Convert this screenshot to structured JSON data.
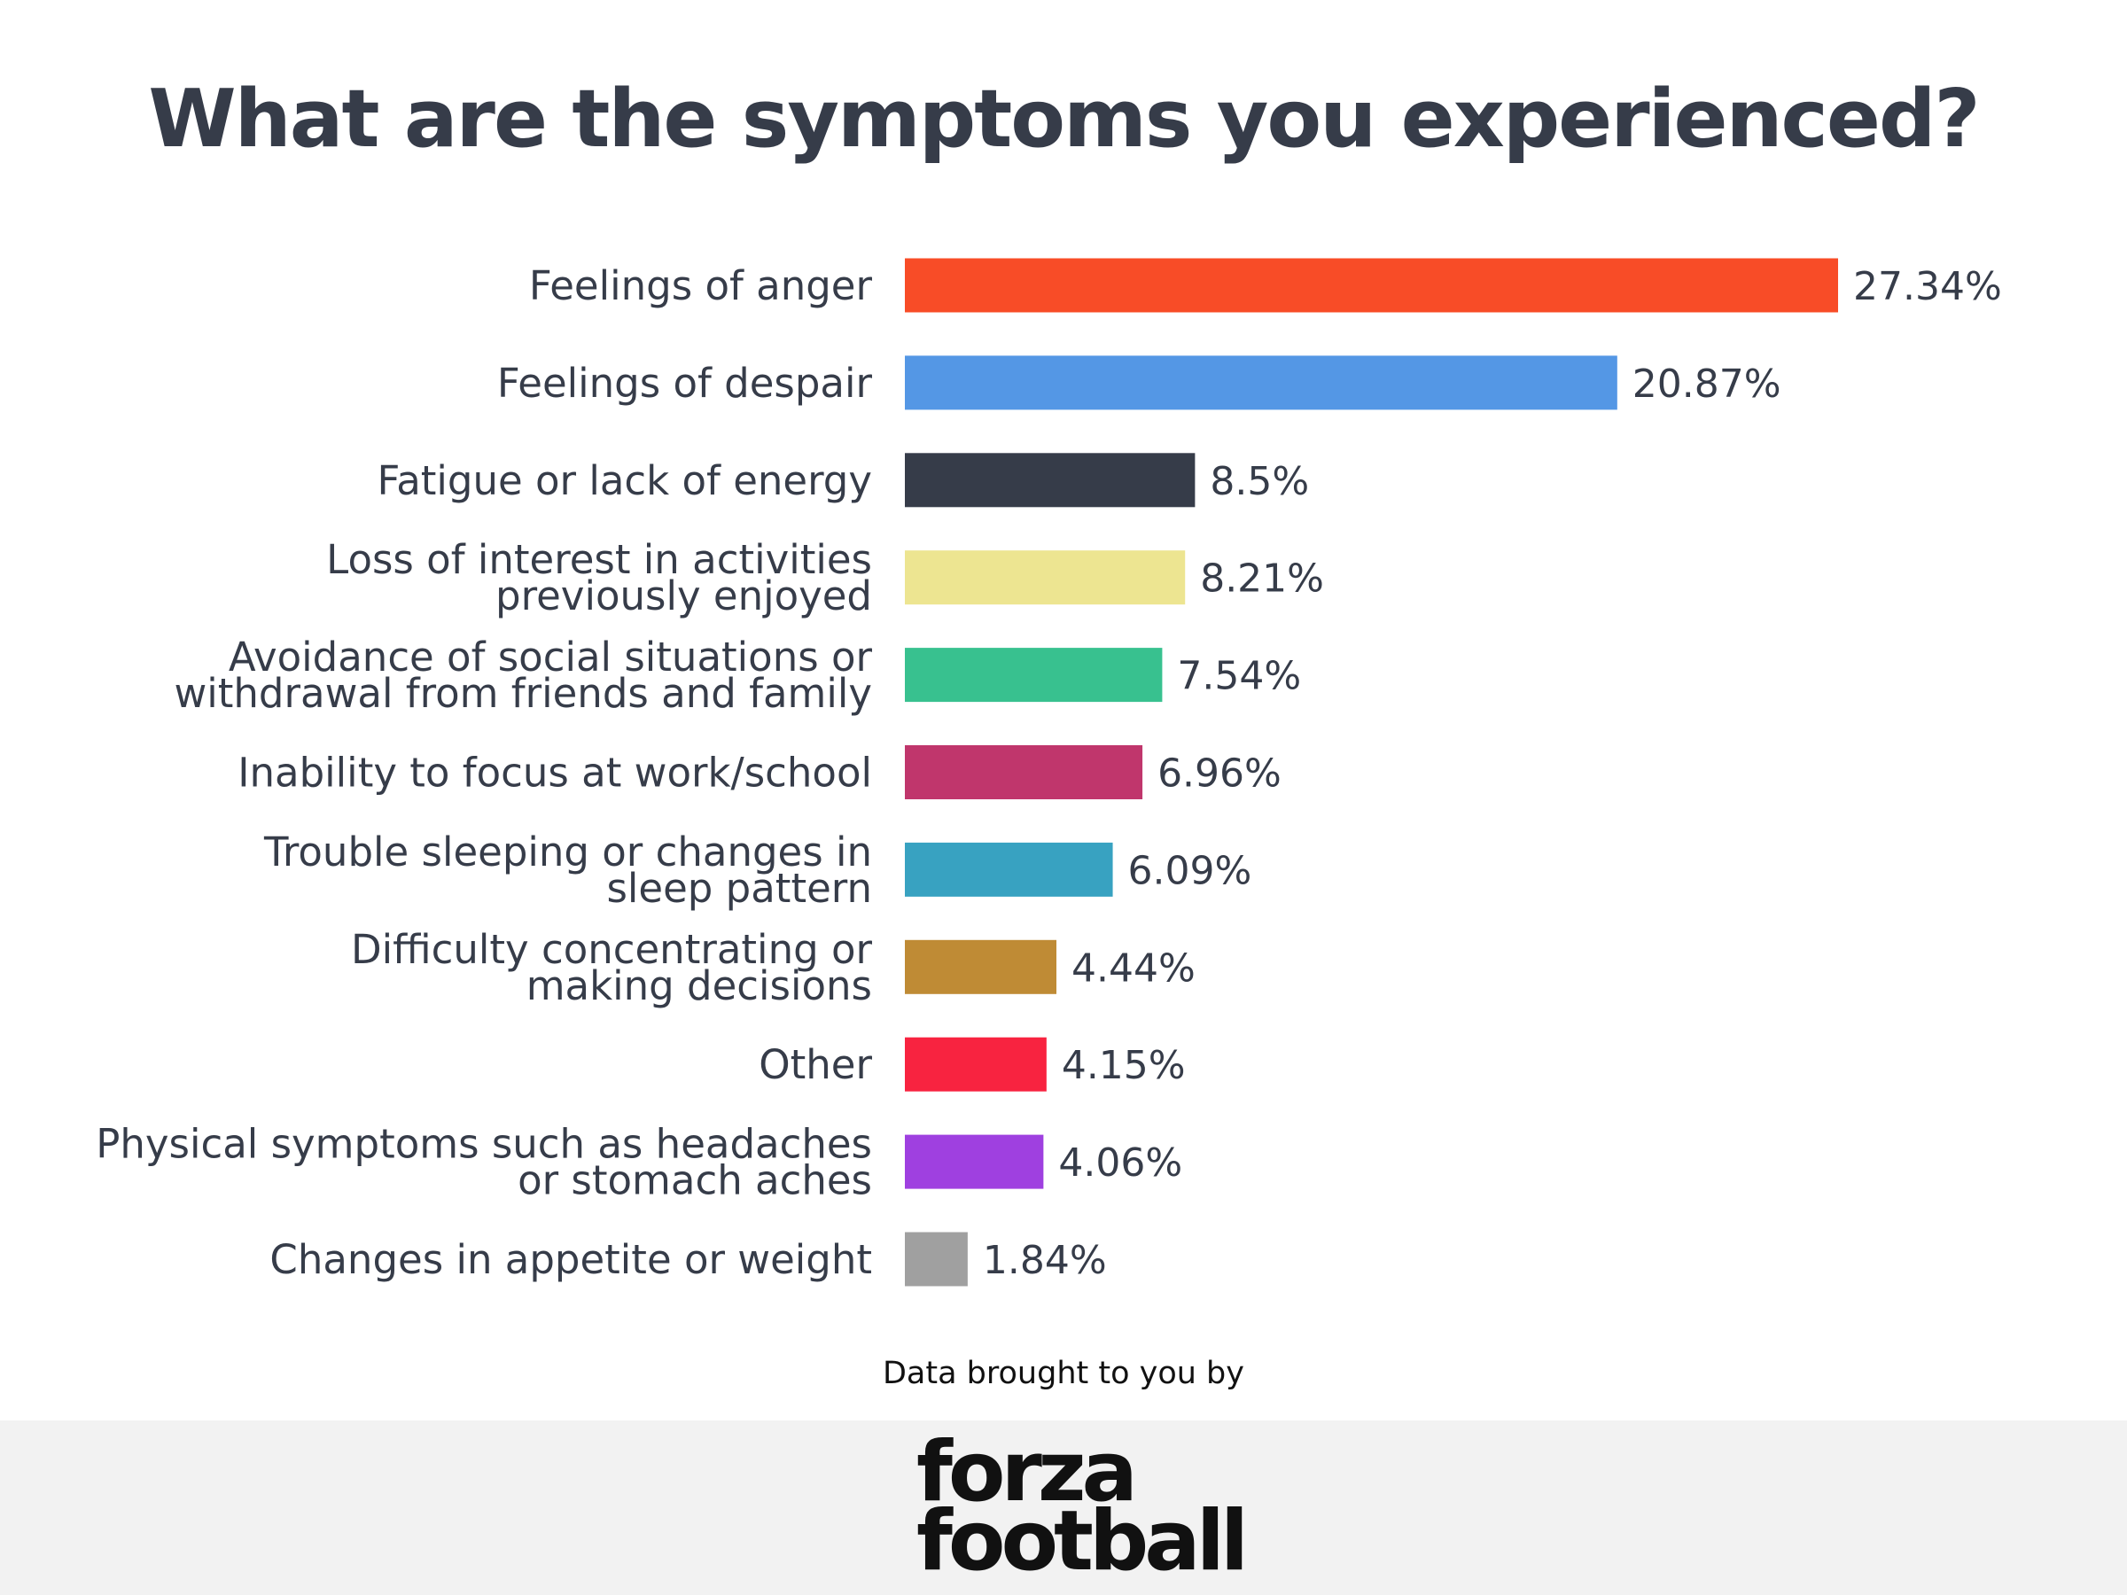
{
  "chart_data": {
    "type": "bar",
    "orientation": "horizontal",
    "title": "What are the symptoms you experienced?",
    "categories": [
      [
        "Feelings of anger"
      ],
      [
        "Feelings of despair"
      ],
      [
        "Fatigue or lack of energy"
      ],
      [
        "Loss of interest in activities",
        "previously enjoyed"
      ],
      [
        "Avoidance of social situations or",
        "withdrawal from friends and family"
      ],
      [
        "Inability to focus at work/school"
      ],
      [
        "Trouble sleeping or changes in",
        "sleep pattern"
      ],
      [
        "Difficulty concentrating or",
        "making decisions"
      ],
      [
        "Other"
      ],
      [
        "Physical symptoms such as headaches",
        "or stomach aches"
      ],
      [
        "Changes in appetite or weight"
      ]
    ],
    "values": [
      27.34,
      20.87,
      8.5,
      8.21,
      7.54,
      6.96,
      6.09,
      4.44,
      4.15,
      4.06,
      1.84
    ],
    "value_labels": [
      "27.34%",
      "20.87%",
      "8.5%",
      "8.21%",
      "7.54%",
      "6.96%",
      "6.09%",
      "4.44%",
      "4.15%",
      "4.06%",
      "1.84%"
    ],
    "colors": [
      "#f84c27",
      "#5497e5",
      "#363c49",
      "#ede591",
      "#38c18f",
      "#c0366c",
      "#38a2c1",
      "#bf8b35",
      "#f82340",
      "#9f40e0",
      "#a0a0a0"
    ],
    "xlim": [
      0,
      27.34
    ],
    "grid": false,
    "legend": "none"
  },
  "footer": {
    "credit": "Data brought to you by",
    "logo": [
      "forza",
      "football"
    ]
  }
}
